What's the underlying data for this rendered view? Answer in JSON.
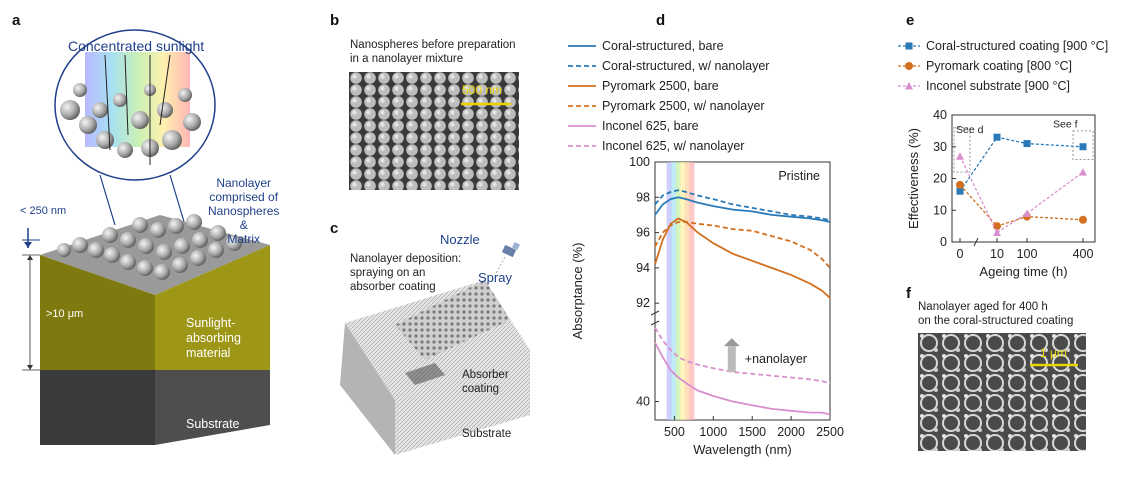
{
  "panels": {
    "a": {
      "letter": "a",
      "sunlight": "Concentrated sunlight",
      "nanolayer_line1": "Nanolayer",
      "nanolayer_line2": "comprised of",
      "nanolayer_line3": "Nanospheres",
      "nanolayer_line4": "&",
      "nanolayer_line5": "Matrix",
      "thickness_small": "< 250 nm",
      "thickness_large": ">10 μm",
      "material_line1": "Sunlight-",
      "material_line2": "absorbing",
      "material_line3": "material",
      "substrate": "Substrate"
    },
    "b": {
      "letter": "b",
      "caption_line1": "Nanospheres before preparation",
      "caption_line2": "in a nanolayer mixture",
      "scalebar": "500 nm"
    },
    "c": {
      "letter": "c",
      "nozzle": "Nozzle",
      "caption_line1": "Nanolayer deposition:",
      "caption_line2": "spraying on an",
      "caption_line3": "absorber coating",
      "spray": "Spray",
      "absorber_line1": "Absorber",
      "absorber_line2": "coating",
      "substrate": "Substrate"
    },
    "d": {
      "letter": "d"
    },
    "e": {
      "letter": "e"
    },
    "f": {
      "letter": "f",
      "caption_line1": "Nanolayer aged for 400 h",
      "caption_line2": "on the coral-structured coating",
      "scalebar": "1 μm"
    }
  },
  "chart_data": [
    {
      "type": "line",
      "panel": "d",
      "annotation": "Pristine",
      "arrow_label": "+nanolayer",
      "xlabel": "Wavelength (nm)",
      "ylabel": "Absorptance (%)",
      "xlim": [
        250,
        2500
      ],
      "x_ticks": [
        500,
        1000,
        1500,
        2000,
        2500
      ],
      "y_ticks": [
        40,
        60,
        92,
        94,
        96,
        98,
        100
      ],
      "y_tick_labels": [
        "40",
        "",
        "92",
        "94",
        "96",
        "98",
        "100"
      ],
      "visible_band_nm": [
        400,
        750
      ],
      "legend_position": "top",
      "x": [
        250,
        350,
        450,
        550,
        650,
        800,
        1000,
        1250,
        1500,
        1750,
        2000,
        2250,
        2400,
        2500
      ],
      "series": [
        {
          "name": "Coral-structured, bare",
          "color": "#2a7ab8",
          "style": "solid",
          "values": [
            97.0,
            97.6,
            97.9,
            98.0,
            97.9,
            97.7,
            97.5,
            97.3,
            97.2,
            97.0,
            96.9,
            96.8,
            96.7,
            96.6
          ]
        },
        {
          "name": "Coral-structured, w/ nanolayer",
          "color": "#2a7ab8",
          "style": "dashed",
          "values": [
            97.6,
            98.1,
            98.3,
            98.4,
            98.3,
            98.1,
            97.9,
            97.6,
            97.4,
            97.2,
            97.0,
            96.9,
            96.8,
            96.7
          ]
        },
        {
          "name": "Pyromark 2500, bare",
          "color": "#d2701f",
          "style": "solid",
          "values": [
            94.2,
            95.6,
            96.5,
            96.8,
            96.6,
            96.0,
            95.4,
            94.8,
            94.4,
            94.0,
            93.6,
            93.1,
            92.7,
            92.3
          ]
        },
        {
          "name": "Pyromark 2500, w/ nanolayer",
          "color": "#d2701f",
          "style": "dashed",
          "values": [
            95.2,
            96.0,
            96.4,
            96.6,
            96.6,
            96.5,
            96.4,
            96.2,
            96.1,
            95.8,
            95.5,
            95.0,
            94.5,
            94.0
          ]
        },
        {
          "name": "Inconel 625, bare",
          "color": "#d98fcf",
          "style": "solid",
          "values": [
            72,
            64,
            57,
            53,
            50,
            46,
            43,
            40,
            38,
            36,
            35,
            34,
            34,
            33
          ]
        },
        {
          "name": "Inconel 625, w/ nanolayer",
          "color": "#d98fcf",
          "style": "dashed",
          "values": [
            80,
            73,
            68,
            64,
            62,
            60,
            58,
            56,
            55,
            54,
            53,
            52,
            51,
            50
          ]
        }
      ]
    },
    {
      "type": "line",
      "panel": "e",
      "xlabel": "Ageing time (h)",
      "ylabel": "Effectiveness (%)",
      "ylim": [
        0,
        40
      ],
      "y_ticks": [
        0,
        10,
        20,
        30,
        40
      ],
      "x_categories": [
        "0",
        "10",
        "100",
        "400"
      ],
      "annotations": [
        "See d",
        "See f"
      ],
      "legend_position": "top",
      "series": [
        {
          "name": "Coral-structured coating [900 °C]",
          "color": "#2a7ab8",
          "marker": "square",
          "values": [
            16,
            33,
            31,
            30
          ]
        },
        {
          "name": "Pyromark coating [800 °C]",
          "color": "#d2701f",
          "marker": "circle",
          "values": [
            18,
            5,
            8,
            7
          ]
        },
        {
          "name": "Inconel substrate [900 °C]",
          "color": "#d98fcf",
          "marker": "triangle",
          "values": [
            27,
            3,
            9,
            22
          ]
        }
      ]
    }
  ]
}
